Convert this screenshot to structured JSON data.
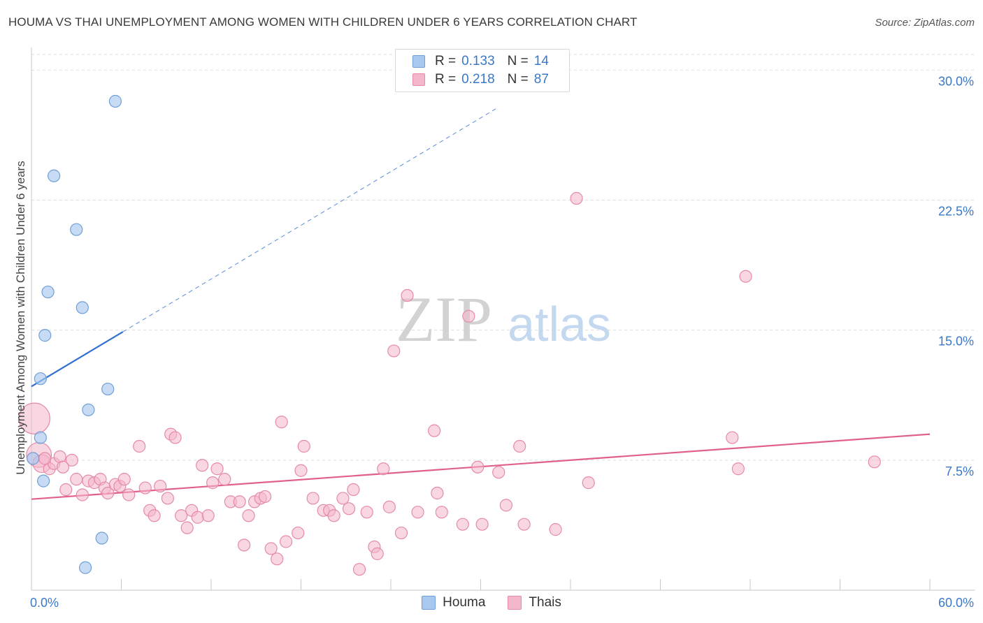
{
  "header": {
    "title": "HOUMA VS THAI UNEMPLOYMENT AMONG WOMEN WITH CHILDREN UNDER 6 YEARS CORRELATION CHART",
    "source": "Source: ZipAtlas.com"
  },
  "watermark": {
    "zip": "ZIP",
    "atlas": "atlas"
  },
  "legend": {
    "houma": {
      "r_label": "R =",
      "r_value": "0.133",
      "n_label": "N =",
      "n_value": "14"
    },
    "thai": {
      "r_label": "R =",
      "r_value": "0.218",
      "n_label": "N =",
      "n_value": "87"
    }
  },
  "bottom_legend": {
    "houma": "Houma",
    "thai": "Thais"
  },
  "colors": {
    "houma_fill": "#a9c8ef",
    "houma_stroke": "#6f9fd8",
    "houma_line": "#2f6fcf",
    "thai_fill": "#f4b6ca",
    "thai_stroke": "#e58aa8",
    "thai_line": "#e0608a",
    "axis_text": "#3a78c9",
    "grid": "#dddddd"
  },
  "chart_data": {
    "type": "scatter",
    "title": "HOUMA VS THAI UNEMPLOYMENT AMONG WOMEN WITH CHILDREN UNDER 6 YEARS CORRELATION CHART",
    "xlabel": "",
    "ylabel": "Unemployment Among Women with Children Under 6 years",
    "xlim": [
      0,
      60
    ],
    "ylim": [
      0,
      30.9
    ],
    "x_tick_labels": [
      "0.0%",
      "60.0%"
    ],
    "y_ticks": [
      7.5,
      15.0,
      22.5,
      30.0
    ],
    "y_tick_labels": [
      "7.5%",
      "15.0%",
      "22.5%",
      "30.0%"
    ],
    "grid": true,
    "series": [
      {
        "name": "Houma",
        "r": 0.133,
        "n": 14,
        "points": [
          [
            0.1,
            7.6
          ],
          [
            0.6,
            12.2
          ],
          [
            0.6,
            8.8
          ],
          [
            0.8,
            6.3
          ],
          [
            0.9,
            14.7
          ],
          [
            1.1,
            17.2
          ],
          [
            1.5,
            23.9
          ],
          [
            3.0,
            20.8
          ],
          [
            3.4,
            16.3
          ],
          [
            3.8,
            10.4
          ],
          [
            4.7,
            3.0
          ],
          [
            3.6,
            1.3
          ],
          [
            5.1,
            11.6
          ],
          [
            5.6,
            28.2
          ]
        ],
        "sizes": [
          1,
          1,
          1,
          1,
          1,
          1,
          1,
          1,
          1,
          1,
          1,
          1,
          1,
          1
        ],
        "trend": {
          "x0": 0,
          "y0": 11.75,
          "x1": 6.1,
          "y1": 14.9,
          "dash_to_x": 31
        }
      },
      {
        "name": "Thais",
        "r": 0.218,
        "n": 87,
        "points": [
          [
            0.2,
            9.9
          ],
          [
            0.5,
            7.8
          ],
          [
            0.7,
            7.3
          ],
          [
            1.2,
            7.0
          ],
          [
            1.5,
            7.3
          ],
          [
            1.9,
            7.7
          ],
          [
            2.3,
            5.8
          ],
          [
            2.7,
            7.5
          ],
          [
            3.0,
            6.4
          ],
          [
            3.4,
            5.5
          ],
          [
            3.8,
            6.3
          ],
          [
            4.2,
            6.2
          ],
          [
            4.6,
            6.4
          ],
          [
            4.9,
            5.9
          ],
          [
            5.1,
            5.6
          ],
          [
            5.6,
            6.1
          ],
          [
            5.9,
            6.0
          ],
          [
            6.2,
            6.4
          ],
          [
            6.5,
            5.5
          ],
          [
            7.2,
            8.3
          ],
          [
            7.6,
            5.9
          ],
          [
            7.9,
            4.6
          ],
          [
            8.2,
            4.3
          ],
          [
            8.6,
            6.0
          ],
          [
            9.1,
            5.3
          ],
          [
            9.3,
            9.0
          ],
          [
            9.6,
            8.8
          ],
          [
            10.0,
            4.3
          ],
          [
            10.4,
            3.6
          ],
          [
            10.7,
            4.6
          ],
          [
            11.1,
            4.2
          ],
          [
            11.4,
            7.2
          ],
          [
            11.8,
            4.3
          ],
          [
            12.1,
            6.2
          ],
          [
            12.4,
            7.0
          ],
          [
            12.9,
            6.4
          ],
          [
            13.3,
            5.1
          ],
          [
            13.9,
            5.1
          ],
          [
            14.2,
            2.6
          ],
          [
            14.5,
            4.3
          ],
          [
            14.9,
            5.1
          ],
          [
            15.3,
            5.3
          ],
          [
            15.6,
            5.4
          ],
          [
            16.0,
            2.4
          ],
          [
            16.4,
            1.8
          ],
          [
            16.7,
            9.7
          ],
          [
            17.0,
            2.8
          ],
          [
            17.8,
            3.3
          ],
          [
            18.0,
            6.9
          ],
          [
            18.2,
            8.3
          ],
          [
            18.8,
            5.3
          ],
          [
            19.5,
            4.6
          ],
          [
            19.9,
            4.6
          ],
          [
            20.2,
            4.3
          ],
          [
            20.8,
            5.3
          ],
          [
            21.2,
            4.7
          ],
          [
            21.5,
            5.8
          ],
          [
            21.9,
            1.2
          ],
          [
            22.4,
            4.5
          ],
          [
            22.9,
            2.5
          ],
          [
            23.1,
            2.1
          ],
          [
            23.5,
            7.0
          ],
          [
            23.9,
            4.8
          ],
          [
            24.2,
            13.8
          ],
          [
            24.7,
            3.3
          ],
          [
            25.1,
            17.0
          ],
          [
            25.8,
            4.5
          ],
          [
            26.9,
            9.2
          ],
          [
            27.1,
            5.6
          ],
          [
            27.4,
            4.5
          ],
          [
            28.8,
            3.8
          ],
          [
            29.2,
            15.8
          ],
          [
            29.8,
            7.1
          ],
          [
            30.1,
            3.8
          ],
          [
            31.2,
            6.8
          ],
          [
            31.7,
            4.9
          ],
          [
            32.6,
            8.3
          ],
          [
            32.9,
            3.8
          ],
          [
            35.0,
            3.5
          ],
          [
            36.4,
            22.6
          ],
          [
            37.2,
            6.2
          ],
          [
            47.7,
            18.1
          ],
          [
            46.8,
            8.8
          ],
          [
            47.2,
            7.0
          ],
          [
            56.3,
            7.4
          ],
          [
            0.9,
            7.6
          ],
          [
            2.1,
            7.1
          ]
        ],
        "sizes": [
          2.6,
          2.1,
          1.5,
          1,
          1,
          1,
          1,
          1,
          1,
          1,
          1,
          1,
          1,
          1,
          1,
          1,
          1,
          1,
          1,
          1,
          1,
          1,
          1,
          1,
          1,
          1,
          1,
          1,
          1,
          1,
          1,
          1,
          1,
          1,
          1,
          1,
          1,
          1,
          1,
          1,
          1,
          1,
          1,
          1,
          1,
          1,
          1,
          1,
          1,
          1,
          1,
          1,
          1,
          1,
          1,
          1,
          1,
          1,
          1,
          1,
          1,
          1,
          1,
          1,
          1,
          1,
          1,
          1,
          1,
          1,
          1,
          1,
          1,
          1,
          1,
          1,
          1,
          1,
          1,
          1,
          1,
          1,
          1,
          1,
          1,
          1,
          1
        ],
        "trend": {
          "x0": 0,
          "y0": 5.25,
          "x1": 60,
          "y1": 9.0
        }
      }
    ]
  }
}
